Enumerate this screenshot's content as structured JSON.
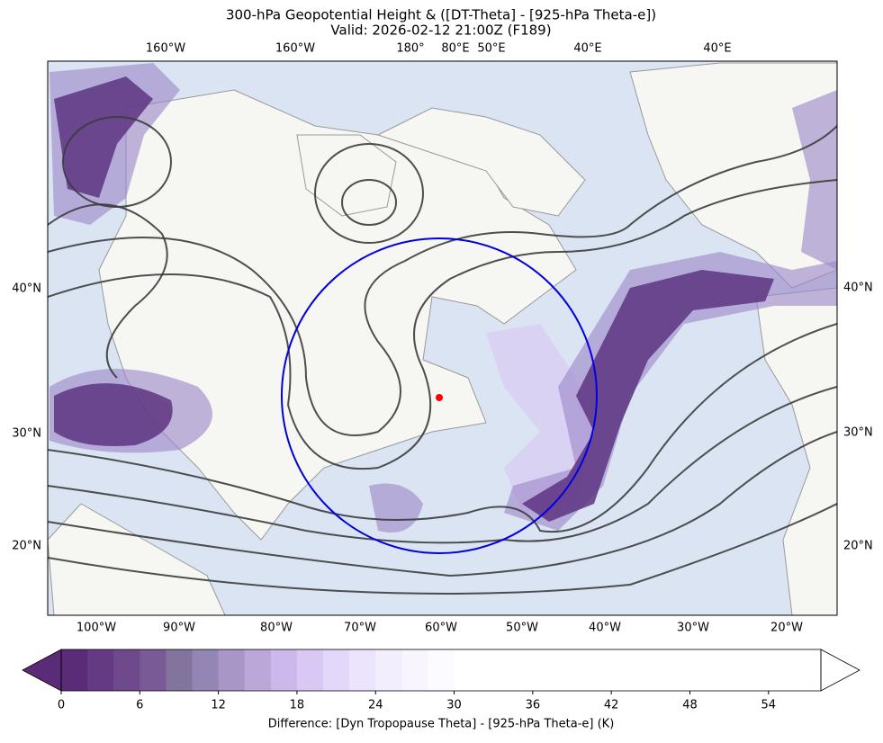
{
  "header": {
    "title": "300-hPa Geopotential Height & ([DT-Theta] - [925-hPa Theta-e])",
    "subtitle": "Valid: 2026-02-12 21:00Z (F189)"
  },
  "map": {
    "top_labels": [
      "160°W",
      "160°W",
      "180°",
      "80°E",
      "50°E",
      "40°E",
      "40°E"
    ],
    "left_labels": [
      "40°N",
      "30°N",
      "20°N"
    ],
    "right_labels": [
      "40°N",
      "30°N",
      "20°N"
    ],
    "bottom_labels": [
      "100°W",
      "90°W",
      "80°W",
      "70°W",
      "60°W",
      "50°W",
      "40°W",
      "30°W",
      "20°W"
    ]
  },
  "colorbar": {
    "lim": [
      0,
      58
    ],
    "ticks": [
      0,
      6,
      12,
      18,
      24,
      30,
      36,
      42,
      48,
      54
    ],
    "levels": [
      0,
      2,
      4,
      6,
      8,
      10,
      12,
      14,
      16,
      18,
      20,
      22,
      24,
      26,
      28,
      30
    ],
    "colors": [
      "#5a2c78",
      "#643a84",
      "#6e4a8c",
      "#7a5a96",
      "#83749e",
      "#9486b4",
      "#a897c6",
      "#bba8d8",
      "#ccb8ea",
      "#d9c8f4",
      "#e4d8fa",
      "#ece4fd",
      "#f3eefe",
      "#f8f5ff",
      "#fcfbff"
    ],
    "label": "Difference: [Dyn Tropopause Theta] - [925-hPa Theta-e] (K)"
  }
}
